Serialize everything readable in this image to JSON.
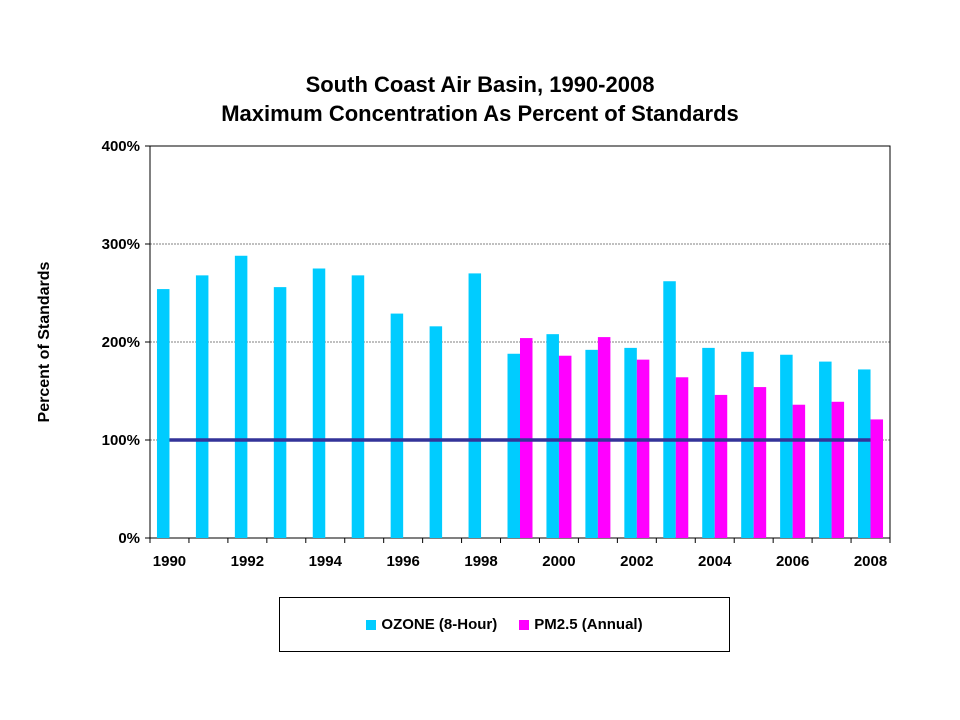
{
  "chart_data": {
    "type": "bar",
    "title": "South Coast Air Basin, 1990-2008",
    "subtitle": "Maximum Concentration As Percent of Standards",
    "ylabel": "Percent of Standards",
    "xlabel": "",
    "ylim": [
      0,
      400
    ],
    "y_ticks": [
      "0%",
      "100%",
      "200%",
      "300%",
      "400%"
    ],
    "x_tick_labels": [
      "1990",
      "1992",
      "1994",
      "1996",
      "1998",
      "2000",
      "2002",
      "2004",
      "2006",
      "2008"
    ],
    "categories": [
      "1990",
      "1991",
      "1992",
      "1993",
      "1994",
      "1995",
      "1996",
      "1997",
      "1998",
      "1999",
      "2000",
      "2001",
      "2002",
      "2003",
      "2004",
      "2005",
      "2006",
      "2007",
      "2008"
    ],
    "series": [
      {
        "name": "OZONE (8-Hour)",
        "color": "#00ccff",
        "values": [
          254,
          268,
          288,
          256,
          275,
          268,
          229,
          216,
          270,
          188,
          208,
          192,
          194,
          262,
          194,
          190,
          187,
          180,
          172
        ]
      },
      {
        "name": "PM2.5 (Annual)",
        "color": "#ff00ff",
        "values": [
          null,
          null,
          null,
          null,
          null,
          null,
          null,
          null,
          null,
          204,
          186,
          205,
          182,
          164,
          146,
          154,
          136,
          139,
          121
        ]
      }
    ],
    "reference_line": {
      "value": 100,
      "color": "#333399"
    },
    "grid": true,
    "legend_position": "bottom"
  }
}
